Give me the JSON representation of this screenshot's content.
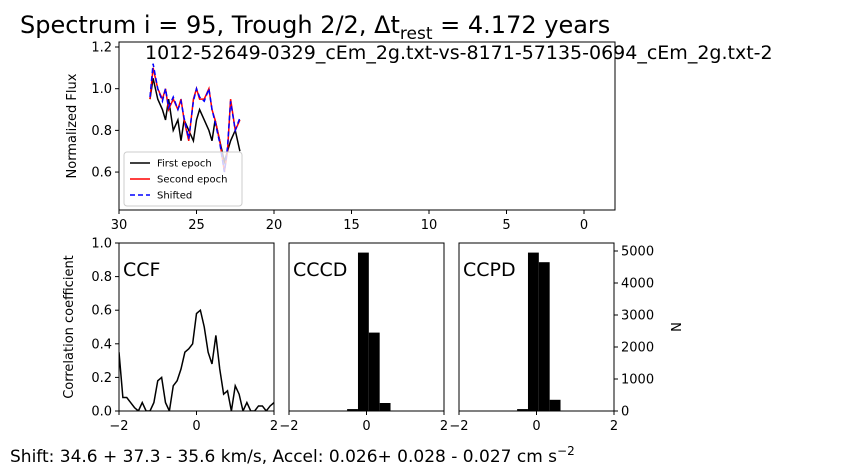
{
  "title": "Spectrum i = 95, Trough 2/2, Δt",
  "title_subscript": "rest",
  "title_end": " = 4.172 years",
  "footer": "Shift:  34.6 +  37.3 -  35.6 km/s, Accel: 0.026+ 0.028 - 0.027 cm s",
  "footer_superscript": "−2",
  "chart_data": [
    {
      "type": "line",
      "subtitle": "1012-52649-0329_cEm_2g.txt-vs-8171-57135-0694_cEm_2g.txt-2",
      "ylabel": "Normalized Flux",
      "x": [
        28,
        27.8,
        27.5,
        27.2,
        27,
        26.8,
        26.5,
        26.2,
        26,
        25.8,
        25.5,
        25.2,
        25,
        24.8,
        24.5,
        24.2,
        24,
        23.8,
        23.5,
        23.2,
        23,
        22.8,
        22.5,
        22.2
      ],
      "series": [
        {
          "name": "First epoch",
          "color": "#000000",
          "linestyle": "solid",
          "values": [
            0.95,
            1.05,
            0.95,
            0.9,
            0.85,
            0.95,
            0.8,
            0.85,
            0.75,
            0.85,
            0.8,
            0.75,
            0.85,
            0.9,
            0.85,
            0.8,
            0.75,
            0.85,
            0.75,
            0.65,
            0.7,
            0.75,
            0.8,
            0.7
          ]
        },
        {
          "name": "Second epoch",
          "color": "#ff0000",
          "linestyle": "solid",
          "values": [
            0.95,
            1.1,
            1.0,
            0.95,
            1.0,
            0.9,
            0.95,
            0.9,
            0.95,
            0.85,
            0.75,
            0.95,
            1.0,
            0.95,
            0.95,
            1.0,
            0.9,
            0.85,
            0.75,
            0.6,
            0.7,
            0.95,
            0.8,
            0.85
          ]
        },
        {
          "name": "Shifted",
          "color": "#0000ff",
          "linestyle": "dashed",
          "values": [
            0.96,
            1.12,
            1.0,
            0.94,
            1.0,
            0.91,
            0.96,
            0.9,
            0.94,
            0.86,
            0.76,
            0.94,
            1.0,
            0.96,
            0.94,
            1.0,
            0.9,
            0.84,
            0.74,
            0.6,
            0.72,
            0.94,
            0.8,
            0.86
          ]
        }
      ],
      "xlim": [
        30,
        -2
      ],
      "xticks": [
        30,
        25,
        20,
        15,
        10,
        5,
        0
      ],
      "ylim": [
        0.418,
        1.224
      ],
      "yticks": [
        0.6,
        0.8,
        {
          "value": 1,
          "label": "1.0"
        },
        1.2
      ],
      "legend": "lower left"
    },
    {
      "type": "line",
      "annotation": "CCF",
      "ylabel": "Correlation coefficient",
      "color": "#000000",
      "x": [
        -2,
        -1.9,
        -1.8,
        -1.7,
        -1.6,
        -1.5,
        -1.4,
        -1.3,
        -1.2,
        -1.1,
        -1,
        -0.9,
        -0.8,
        -0.7,
        -0.6,
        -0.5,
        -0.4,
        -0.3,
        -0.2,
        -0.1,
        0,
        0.1,
        0.2,
        0.3,
        0.4,
        0.5,
        0.6,
        0.7,
        0.8,
        0.9,
        1,
        1.1,
        1.2,
        1.3,
        1.4,
        1.5,
        1.6,
        1.7,
        1.8,
        1.9,
        2
      ],
      "values": [
        0.35,
        0.08,
        0.08,
        0.05,
        0.02,
        0,
        0.05,
        0,
        0,
        0.05,
        0.18,
        0.2,
        0.05,
        0,
        0.15,
        0.18,
        0.25,
        0.35,
        0.37,
        0.4,
        0.58,
        0.6,
        0.5,
        0.35,
        0.28,
        0.45,
        0.25,
        0.1,
        0.12,
        0,
        0.15,
        0.1,
        0,
        0.05,
        0,
        0,
        0.03,
        0.03,
        0,
        0.03,
        0.05
      ],
      "xlim": [
        -2,
        2
      ],
      "xticks": [
        {
          "value": -2,
          "label": "−2"
        },
        0,
        2
      ],
      "ylim": [
        0,
        1
      ],
      "yticks": [
        {
          "value": 0,
          "label": "0.0"
        },
        0.2,
        0.4,
        0.6,
        0.8,
        {
          "value": 1,
          "label": "1.0"
        }
      ]
    },
    {
      "type": "histogram",
      "annotation": "CCCD",
      "color": "#000000",
      "bins": [
        -0.5,
        -0.22,
        0.06,
        0.34,
        0.62
      ],
      "values": [
        60,
        4950,
        2450,
        250
      ],
      "xlim": [
        -2,
        2
      ],
      "xticks": [
        {
          "value": -2,
          "label": "−2"
        },
        0,
        2
      ],
      "ylim": [
        0,
        5250
      ]
    },
    {
      "type": "histogram",
      "annotation": "CCPD",
      "color": "#000000",
      "ylabel": "N",
      "y_axis_side": "right",
      "bins": [
        -0.5,
        -0.22,
        0.06,
        0.34,
        0.62
      ],
      "values": [
        60,
        4950,
        4650,
        350
      ],
      "xlim": [
        -2,
        2
      ],
      "xticks": [
        {
          "value": -2,
          "label": "−2"
        },
        0,
        2
      ],
      "ylim": [
        0,
        5250
      ],
      "yticks": [
        0,
        1000,
        2000,
        3000,
        4000,
        5000
      ]
    }
  ]
}
